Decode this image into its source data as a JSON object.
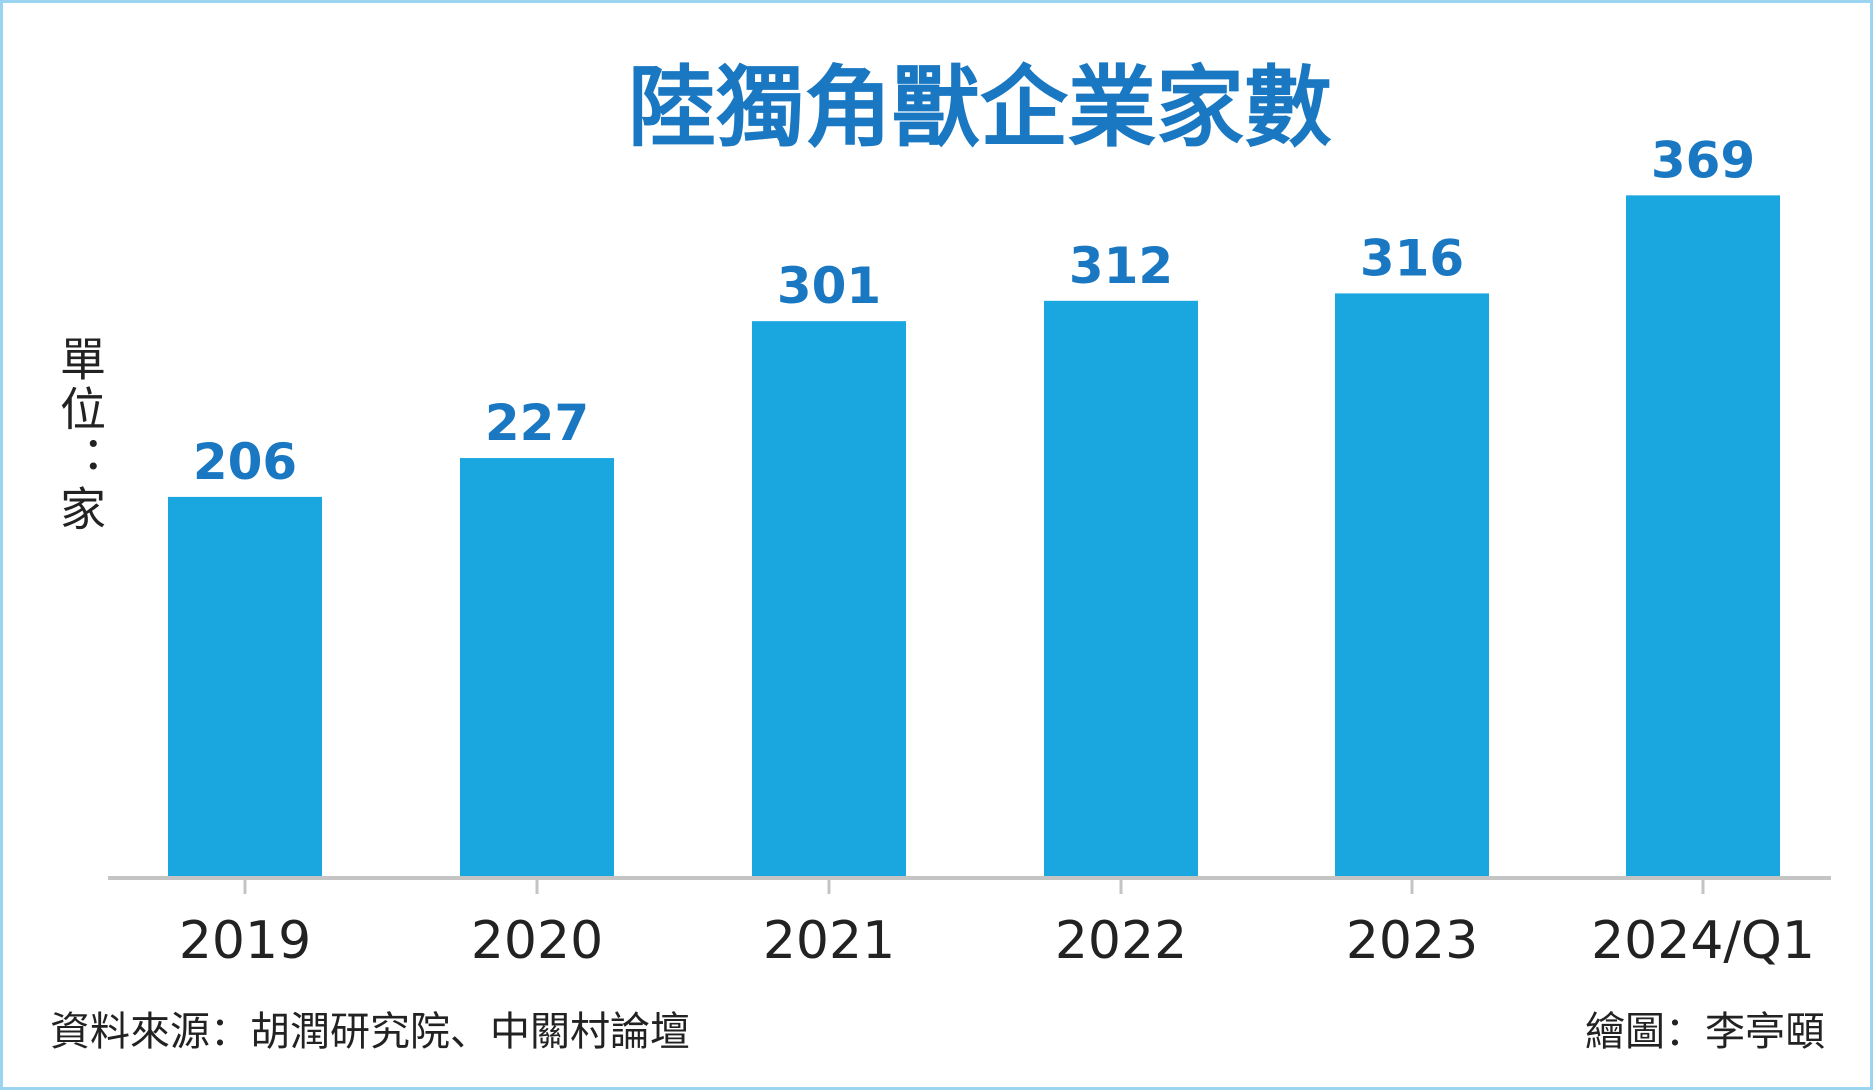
{
  "chart_data": {
    "type": "bar",
    "title": "陸獨角獸企業家數",
    "categories": [
      "2019",
      "2020",
      "2021",
      "2022",
      "2023",
      "2024/Q1"
    ],
    "values": [
      206,
      227,
      301,
      312,
      316,
      369
    ],
    "unit_label": [
      "單",
      "位",
      "：",
      "家"
    ],
    "xlabel": "",
    "ylabel": "單位：家",
    "ylim": [
      0,
      474
    ],
    "grid": false,
    "bar_color": "#1aa7e0",
    "label_color": "#1a78c2"
  },
  "footer": {
    "source": "資料來源：胡潤研究院、中關村論壇",
    "credit": "繪圖：李亭頤"
  }
}
